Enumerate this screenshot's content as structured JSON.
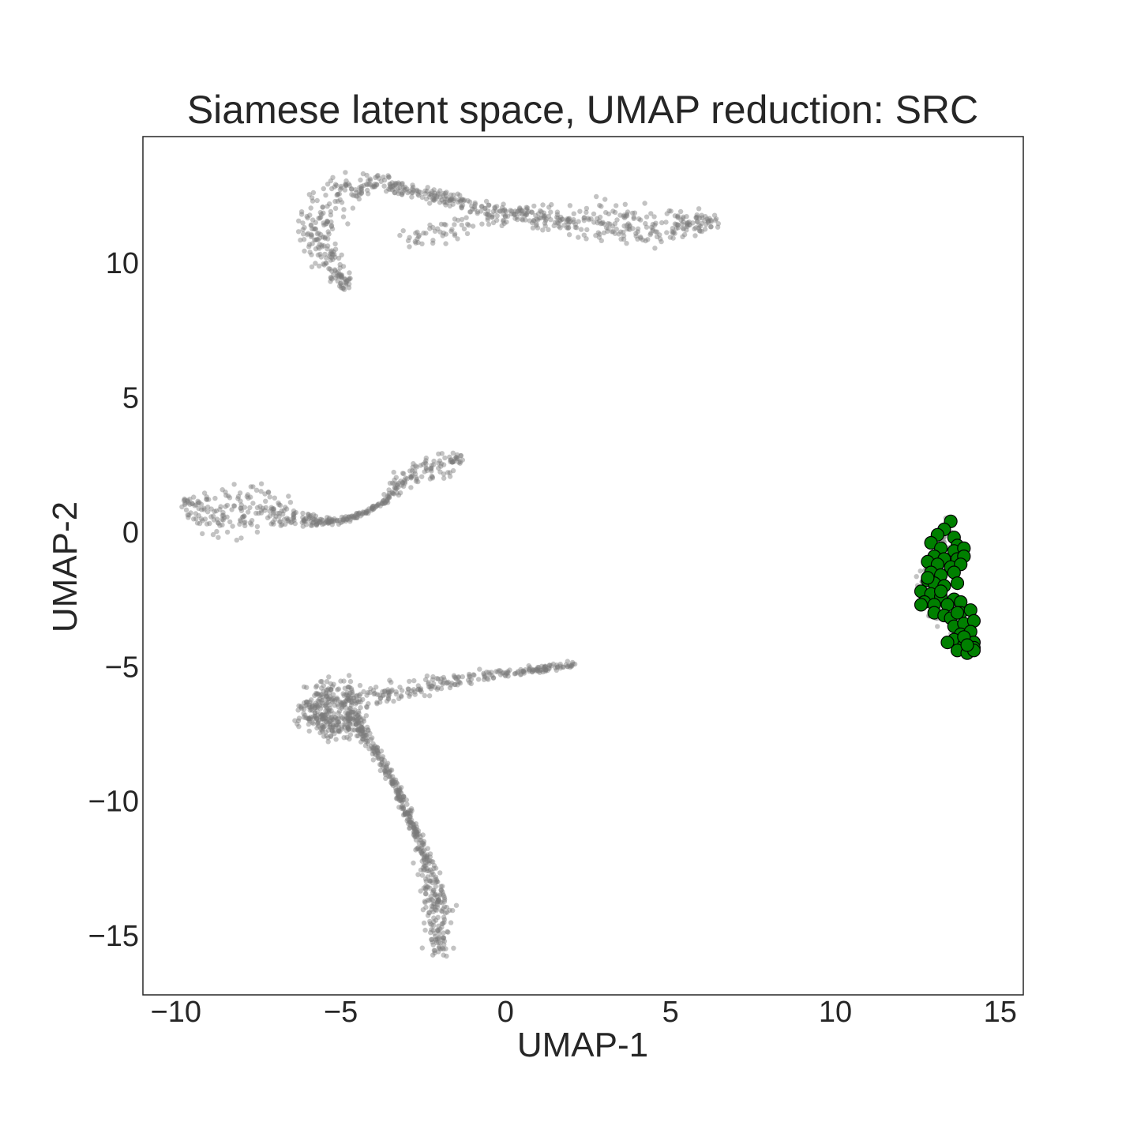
{
  "chart_data": {
    "type": "scatter",
    "title": "Siamese latent space, UMAP reduction: SRC",
    "xlabel": "UMAP-1",
    "ylabel": "UMAP-2",
    "xlim": [
      -11,
      15.7
    ],
    "ylim": [
      -17.2,
      14.7
    ],
    "xticks": [
      -10,
      -5,
      0,
      5,
      10,
      15
    ],
    "xtick_labels": [
      "−10",
      "−5",
      "0",
      "5",
      "10",
      "15"
    ],
    "yticks": [
      -15,
      -10,
      -5,
      0,
      5,
      10
    ],
    "ytick_labels": [
      "−15",
      "−10",
      "−5",
      "0",
      "5",
      "10"
    ],
    "grid": false,
    "background_color": "#7a7a7a",
    "highlight_color": "#008000",
    "highlight_edge_color": "#000000",
    "series": [
      {
        "role": "background",
        "color": "#7a7a7a",
        "clusters": [
          {
            "path": [
              [
                -4.8,
                9.0
              ],
              [
                -5.2,
                9.8
              ],
              [
                -5.7,
                10.6
              ],
              [
                -5.8,
                11.4
              ],
              [
                -5.4,
                12.2
              ],
              [
                -4.7,
                12.8
              ],
              [
                -3.9,
                13.0
              ],
              [
                -3.0,
                12.7
              ],
              [
                -1.5,
                12.3
              ],
              [
                0.0,
                11.9
              ],
              [
                1.5,
                11.6
              ],
              [
                3.0,
                11.5
              ],
              [
                4.5,
                11.3
              ],
              [
                5.5,
                11.4
              ],
              [
                6.4,
                11.6
              ]
            ],
            "spread": [
              0.15,
              0.25,
              0.35,
              0.45,
              0.4,
              0.3,
              0.15,
              0.12,
              0.15,
              0.15,
              0.25,
              0.35,
              0.4,
              0.3,
              0.1
            ],
            "n": 700
          },
          {
            "path": [
              [
                -3.1,
                10.9
              ],
              [
                -2.2,
                11.1
              ],
              [
                -1.2,
                11.4
              ],
              [
                0.0,
                11.7
              ]
            ],
            "spread": [
              0.15,
              0.2,
              0.2,
              0.1
            ],
            "n": 60
          },
          {
            "path": [
              [
                -9.8,
                1.1
              ],
              [
                -9.2,
                0.8
              ],
              [
                -8.5,
                0.7
              ],
              [
                -7.6,
                0.9
              ],
              [
                -6.8,
                0.7
              ],
              [
                -5.8,
                0.4
              ],
              [
                -5.0,
                0.4
              ],
              [
                -4.3,
                0.7
              ],
              [
                -3.7,
                1.1
              ],
              [
                -3.3,
                1.7
              ],
              [
                -2.9,
                2.1
              ],
              [
                -2.2,
                2.4
              ],
              [
                -1.3,
                2.8
              ]
            ],
            "spread": [
              0.1,
              0.4,
              0.5,
              0.5,
              0.3,
              0.1,
              0.05,
              0.05,
              0.05,
              0.15,
              0.25,
              0.3,
              0.1
            ],
            "n": 450
          },
          {
            "path": [
              [
                -5.9,
                -6.7
              ],
              [
                -5.6,
                -6.0
              ],
              [
                -4.8,
                -6.1
              ],
              [
                -4.6,
                -7.0
              ],
              [
                -5.3,
                -7.2
              ],
              [
                -5.9,
                -6.7
              ]
            ],
            "spread": [
              0.35,
              0.35,
              0.35,
              0.35,
              0.35,
              0.35
            ],
            "n": 350
          },
          {
            "path": [
              [
                -4.6,
                -6.1
              ],
              [
                -3.0,
                -5.8
              ],
              [
                -1.0,
                -5.4
              ],
              [
                1.0,
                -5.1
              ],
              [
                2.1,
                -4.9
              ]
            ],
            "spread": [
              0.2,
              0.2,
              0.12,
              0.08,
              0.05
            ],
            "n": 230
          },
          {
            "path": [
              [
                -4.6,
                -7.0
              ],
              [
                -3.9,
                -8.2
              ],
              [
                -3.3,
                -9.5
              ],
              [
                -2.8,
                -11.0
              ],
              [
                -2.3,
                -12.6
              ],
              [
                -2.1,
                -14.0
              ],
              [
                -2.0,
                -15.2
              ],
              [
                -1.9,
                -15.6
              ]
            ],
            "spread": [
              0.15,
              0.12,
              0.1,
              0.1,
              0.2,
              0.35,
              0.3,
              0.1
            ],
            "n": 450
          },
          {
            "path": [
              [
                13.5,
                0.3
              ],
              [
                13.0,
                -0.7
              ],
              [
                12.8,
                -1.8
              ],
              [
                13.1,
                -3.0
              ],
              [
                13.6,
                -3.8
              ],
              [
                14.0,
                -4.3
              ]
            ],
            "spread": [
              0.2,
              0.25,
              0.25,
              0.25,
              0.25,
              0.2
            ],
            "n": 80
          }
        ]
      },
      {
        "role": "highlight",
        "color": "#008000",
        "x": [
          13.5,
          13.3,
          13.1,
          13.6,
          13.7,
          12.9,
          13.2,
          13.6,
          13.9,
          13.0,
          13.3,
          13.7,
          13.9,
          12.8,
          13.1,
          13.5,
          13.8,
          12.9,
          13.2,
          13.6,
          12.8,
          13.0,
          13.3,
          13.7,
          12.6,
          12.9,
          13.2,
          13.6,
          12.7,
          13.0,
          13.4,
          13.8,
          13.0,
          13.3,
          13.5,
          13.8,
          14.1,
          13.6,
          13.9,
          14.2,
          13.8,
          14.1,
          14.2,
          13.6,
          13.9,
          14.2,
          13.4,
          13.7,
          14.0,
          14.2,
          13.9,
          13.7,
          12.6,
          12.8,
          13.2,
          14.0
        ],
        "y": [
          0.4,
          0.1,
          -0.1,
          -0.2,
          -0.5,
          -0.4,
          -0.6,
          -0.7,
          -0.6,
          -0.9,
          -1.0,
          -1.0,
          -0.9,
          -1.1,
          -1.2,
          -1.3,
          -1.2,
          -1.5,
          -1.6,
          -1.5,
          -1.8,
          -1.9,
          -2.0,
          -1.9,
          -2.2,
          -2.3,
          -2.4,
          -2.5,
          -2.6,
          -2.7,
          -2.7,
          -2.6,
          -3.0,
          -3.1,
          -3.2,
          -3.0,
          -2.9,
          -3.5,
          -3.4,
          -3.3,
          -3.8,
          -3.7,
          -4.1,
          -4.0,
          -4.2,
          -4.3,
          -4.1,
          -4.4,
          -4.5,
          -4.4,
          -3.9,
          -3.0,
          -2.7,
          -1.7,
          -2.2,
          -4.2
        ]
      }
    ]
  }
}
